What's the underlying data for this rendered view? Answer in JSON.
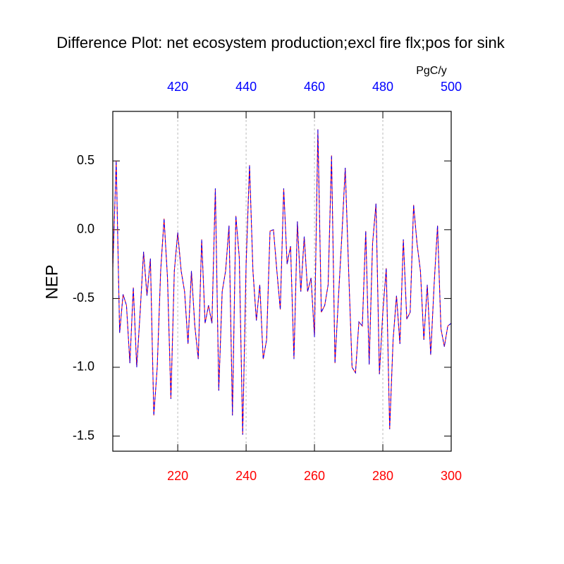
{
  "chart_data": {
    "type": "line",
    "title": "Difference Plot: net ecosystem production;excl fire flx;pos for sink",
    "ylabel": "NEP",
    "x2label": "PgC/y",
    "x": [
      201,
      202,
      203,
      204,
      205,
      206,
      207,
      208,
      209,
      210,
      211,
      212,
      213,
      214,
      215,
      216,
      217,
      218,
      219,
      220,
      221,
      222,
      223,
      224,
      225,
      226,
      227,
      228,
      229,
      230,
      231,
      232,
      233,
      234,
      235,
      236,
      237,
      238,
      239,
      240,
      241,
      242,
      243,
      244,
      245,
      246,
      247,
      248,
      249,
      250,
      251,
      252,
      253,
      254,
      255,
      256,
      257,
      258,
      259,
      260,
      261,
      262,
      263,
      264,
      265,
      266,
      267,
      268,
      269,
      270,
      271,
      272,
      273,
      274,
      275,
      276,
      277,
      278,
      279,
      280,
      281,
      282,
      283,
      284,
      285,
      286,
      287,
      288,
      289,
      290,
      291,
      292,
      293,
      294,
      295,
      296,
      297,
      298,
      299,
      300
    ],
    "series": [
      {
        "color": "#ff0000",
        "values": [
          -0.28,
          0.5,
          -0.75,
          -0.47,
          -0.55,
          -0.97,
          -0.42,
          -1.0,
          -0.6,
          -0.16,
          -0.48,
          -0.21,
          -1.35,
          -1.0,
          -0.3,
          0.08,
          -0.35,
          -1.23,
          -0.3,
          -0.02,
          -0.3,
          -0.45,
          -0.83,
          -0.3,
          -0.7,
          -0.94,
          -0.07,
          -0.68,
          -0.55,
          -0.68,
          0.3,
          -1.17,
          -0.45,
          -0.3,
          0.03,
          -1.35,
          0.1,
          -0.2,
          -1.49,
          -0.25,
          0.47,
          -0.3,
          -0.66,
          -0.4,
          -0.94,
          -0.8,
          -0.01,
          0.0,
          -0.3,
          -0.58,
          0.3,
          -0.25,
          -0.12,
          -0.94,
          0.06,
          -0.45,
          -0.05,
          -0.45,
          -0.35,
          -0.78,
          0.73,
          -0.6,
          -0.55,
          -0.4,
          0.54,
          -0.97,
          -0.5,
          -0.05,
          0.45,
          -0.3,
          -1.0,
          -1.04,
          -0.67,
          -0.7,
          -0.01,
          -0.98,
          -0.1,
          0.19,
          -1.05,
          -0.6,
          -0.28,
          -1.45,
          -0.8,
          -0.48,
          -0.83,
          -0.07,
          -0.65,
          -0.6,
          0.18,
          -0.1,
          -0.3,
          -0.8,
          -0.4,
          -0.91,
          -0.4,
          0.03,
          -0.72,
          -0.85,
          -0.7,
          -0.68
        ]
      },
      {
        "color": "#0000ff",
        "values": [
          -0.28,
          0.5,
          -0.75,
          -0.47,
          -0.55,
          -0.97,
          -0.42,
          -1.0,
          -0.6,
          -0.16,
          -0.48,
          -0.21,
          -1.35,
          -1.0,
          -0.3,
          0.08,
          -0.35,
          -1.23,
          -0.3,
          -0.02,
          -0.3,
          -0.45,
          -0.83,
          -0.3,
          -0.7,
          -0.94,
          -0.07,
          -0.68,
          -0.55,
          -0.68,
          0.3,
          -1.17,
          -0.45,
          -0.3,
          0.03,
          -1.35,
          0.1,
          -0.2,
          -1.49,
          -0.25,
          0.47,
          -0.3,
          -0.66,
          -0.4,
          -0.94,
          -0.8,
          -0.01,
          0.0,
          -0.3,
          -0.58,
          0.3,
          -0.25,
          -0.12,
          -0.94,
          0.06,
          -0.45,
          -0.05,
          -0.45,
          -0.35,
          -0.78,
          0.73,
          -0.6,
          -0.55,
          -0.4,
          0.54,
          -0.97,
          -0.5,
          -0.05,
          0.45,
          -0.3,
          -1.0,
          -1.04,
          -0.67,
          -0.7,
          -0.01,
          -0.98,
          -0.1,
          0.19,
          -1.05,
          -0.6,
          -0.28,
          -1.45,
          -0.8,
          -0.48,
          -0.83,
          -0.07,
          -0.65,
          -0.6,
          0.18,
          -0.1,
          -0.3,
          -0.8,
          -0.4,
          -0.91,
          -0.4,
          0.03,
          -0.72,
          -0.85,
          -0.7,
          -0.68
        ],
        "dashed": true
      }
    ],
    "xlim": [
      201,
      300
    ],
    "xticks": [
      220,
      240,
      260,
      280,
      300
    ],
    "xtick_color": "#ff0000",
    "x2lim": [
      401,
      500
    ],
    "x2ticks": [
      420,
      440,
      460,
      480,
      500
    ],
    "x2tick_color": "#0000ff",
    "ylim": [
      -1.61,
      0.86
    ],
    "yticks": [
      {
        "value": -1.5,
        "label": "-1.5"
      },
      {
        "value": -1,
        "label": "-1.0"
      },
      -0.5,
      {
        "value": 0,
        "label": "0.0"
      },
      0.5
    ],
    "xgrid": true
  }
}
